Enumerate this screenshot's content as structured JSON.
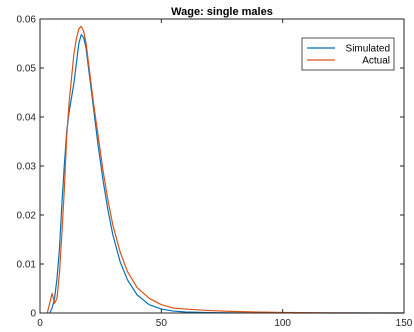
{
  "chart_data": {
    "type": "line",
    "title": "Wage: single males",
    "xlabel": "",
    "ylabel": "",
    "xlim": [
      0,
      150
    ],
    "ylim": [
      0,
      0.06
    ],
    "x_ticks": [
      0,
      50,
      100,
      150
    ],
    "x_tick_labels": [
      "0",
      "50",
      "100",
      "150"
    ],
    "y_ticks": [
      0,
      0.01,
      0.02,
      0.03,
      0.04,
      0.05,
      0.06
    ],
    "y_tick_labels": [
      "0",
      "0.01",
      "0.02",
      "0.03",
      "0.04",
      "0.05",
      "0.06"
    ],
    "grid": false,
    "legend_position": "top-right",
    "colors": {
      "simulated": "#0072BD",
      "actual": "#D95319",
      "axis": "#262626"
    },
    "series": [
      {
        "name": "Simulated",
        "color": "#0072BD",
        "x": [
          4,
          5,
          6,
          7,
          8,
          9,
          10,
          11,
          12,
          13,
          14,
          15,
          16,
          17,
          18,
          19,
          20,
          22,
          24,
          26,
          28,
          30,
          33,
          36,
          40,
          45,
          50,
          55,
          60,
          70,
          80,
          100,
          120,
          150
        ],
        "y": [
          0,
          0.001,
          0.003,
          0.007,
          0.013,
          0.022,
          0.03,
          0.037,
          0.041,
          0.044,
          0.047,
          0.051,
          0.055,
          0.0568,
          0.0562,
          0.054,
          0.05,
          0.042,
          0.034,
          0.027,
          0.021,
          0.016,
          0.0105,
          0.0068,
          0.0037,
          0.0017,
          0.0008,
          0.0004,
          0.0002,
          8e-05,
          3e-05,
          1e-05,
          0,
          0
        ]
      },
      {
        "name": "Actual",
        "color": "#D95319",
        "x": [
          3,
          4,
          5,
          6,
          7,
          8,
          9,
          10,
          11,
          12,
          13,
          14,
          15,
          16,
          17,
          18,
          19,
          20,
          22,
          24,
          26,
          28,
          30,
          33,
          36,
          40,
          45,
          50,
          55,
          60,
          70,
          80,
          100,
          120,
          150
        ],
        "y": [
          0,
          0.002,
          0.004,
          0.002,
          0.003,
          0.008,
          0.016,
          0.025,
          0.036,
          0.043,
          0.048,
          0.053,
          0.056,
          0.058,
          0.0585,
          0.0575,
          0.055,
          0.051,
          0.043,
          0.036,
          0.029,
          0.023,
          0.018,
          0.0125,
          0.0085,
          0.0052,
          0.003,
          0.0017,
          0.001,
          0.0008,
          0.0005,
          0.0003,
          0.0001,
          3e-05,
          0
        ]
      }
    ]
  }
}
